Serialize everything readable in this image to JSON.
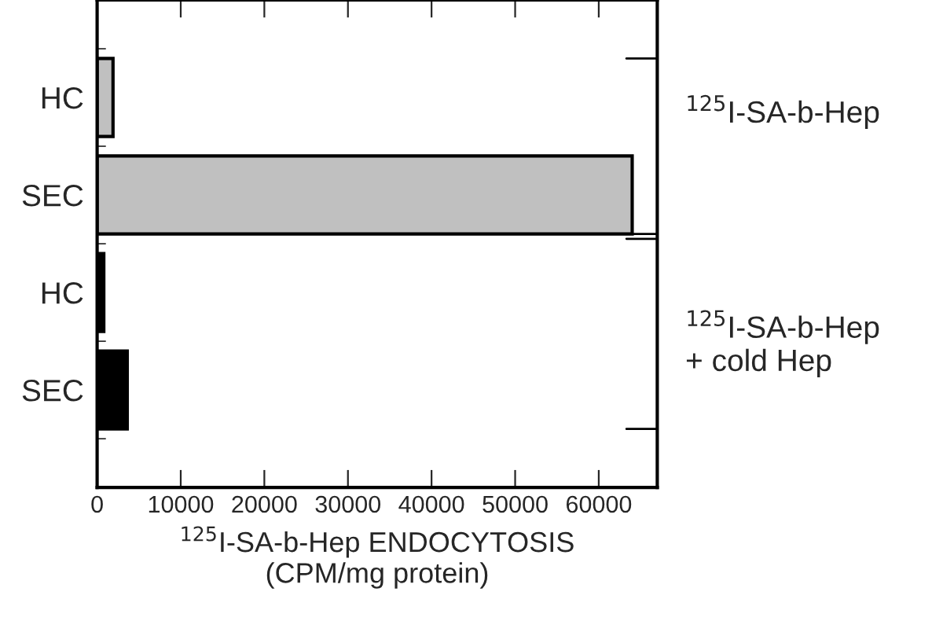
{
  "chart_data": {
    "type": "bar",
    "orientation": "horizontal",
    "categories": [
      "HC",
      "SEC",
      "HC",
      "SEC"
    ],
    "values": [
      1900,
      64000,
      800,
      3600
    ],
    "colors": [
      "#c0c0c0",
      "#c0c0c0",
      "#000000",
      "#000000"
    ],
    "xlim": [
      0,
      67000
    ],
    "xticks": [
      0,
      10000,
      20000,
      30000,
      40000,
      50000,
      60000
    ],
    "xlabel": "$^{125}$I-SA-b-Hep ENDOCYTOSIS\n(CPM/mg protein)",
    "annotations": [
      "$^{125}$I-SA-b-Hep",
      "$^{125}$I-SA-b-Hep\n+ cold Hep"
    ],
    "grid": false,
    "legend": false
  }
}
